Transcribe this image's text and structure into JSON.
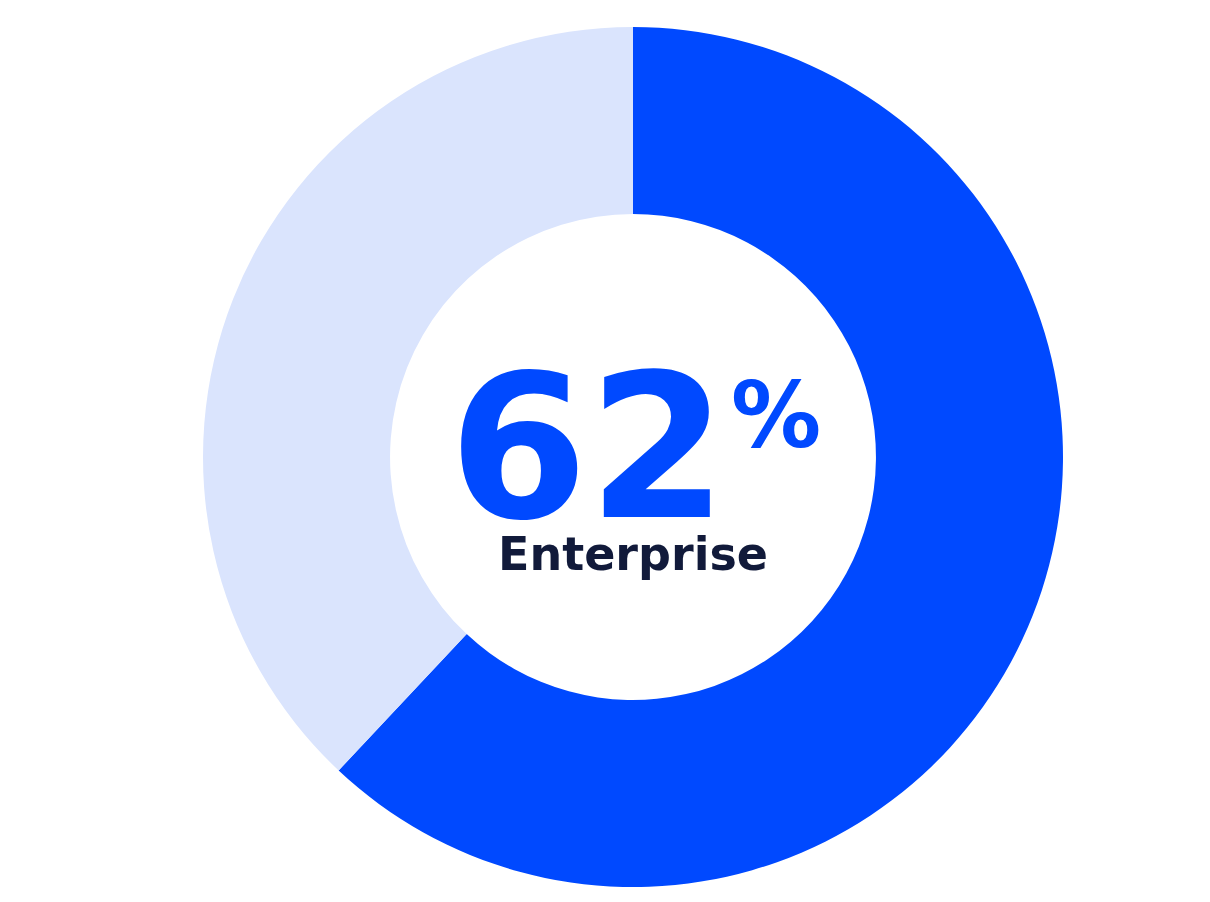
{
  "chart_data": {
    "type": "donut",
    "categories": [
      "Enterprise",
      null
    ],
    "values": [
      62,
      38
    ],
    "colors": [
      "#0049ff",
      "#dae4fd"
    ],
    "value_labels": [
      "62$^{%}$",
      null
    ],
    "legend": false
  }
}
